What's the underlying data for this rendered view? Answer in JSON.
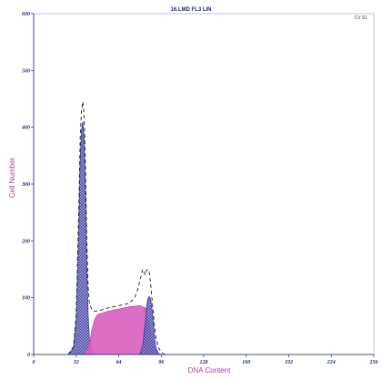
{
  "chart_data": {
    "type": "area",
    "title": "16.LMD FL3 LIN",
    "corner_label": "CV S1",
    "xlabel": "DNA Content",
    "ylabel": "Cell Number",
    "xlim": [
      0,
      256
    ],
    "ylim": [
      0,
      600
    ],
    "x_ticks": [
      0,
      32,
      64,
      96,
      128,
      160,
      192,
      224,
      256
    ],
    "y_ticks": [
      0,
      100,
      200,
      300,
      400,
      500,
      600
    ],
    "grid": false,
    "legend": "none",
    "colors": {
      "g1_peak": "#3a3a9a",
      "s_phase": "#d23ca8",
      "g2_peak": "#3a3a9a",
      "fit_line": "#222222",
      "axis": "#1f2a7a",
      "axis_label": "#b040a0"
    },
    "series": [
      {
        "values_x": [
          26,
          30,
          32,
          34,
          35,
          36,
          37,
          38,
          39,
          40,
          41,
          42,
          44,
          46,
          48
        ],
        "values_y": [
          0,
          12,
          60,
          220,
          340,
          395,
          410,
          380,
          290,
          160,
          70,
          25,
          5,
          0,
          0
        ]
      },
      {
        "values_x": [
          38,
          40,
          42,
          44,
          46,
          48,
          56,
          64,
          72,
          80,
          84,
          86,
          88,
          90,
          92,
          94,
          96
        ],
        "values_y": [
          0,
          8,
          18,
          45,
          62,
          70,
          76,
          80,
          84,
          86,
          82,
          65,
          40,
          18,
          6,
          0,
          0
        ]
      },
      {
        "values_x": [
          80,
          82,
          84,
          85,
          86,
          87,
          88,
          89,
          90,
          91,
          92,
          94,
          96
        ],
        "values_y": [
          0,
          15,
          55,
          85,
          98,
          102,
          98,
          82,
          58,
          30,
          12,
          2,
          0
        ]
      },
      {
        "values_x": [
          26,
          30,
          32,
          34,
          35,
          36,
          37,
          38,
          39,
          40,
          41,
          42,
          44,
          46,
          48,
          52,
          56,
          60,
          64,
          68,
          72,
          76,
          78,
          80,
          82,
          84,
          85,
          86,
          87,
          88,
          89,
          90,
          91,
          92,
          94,
          96,
          98,
          100
        ],
        "values_y": [
          0,
          14,
          70,
          260,
          380,
          430,
          445,
          420,
          330,
          200,
          120,
          90,
          78,
          76,
          77,
          79,
          82,
          84,
          86,
          88,
          90,
          100,
          112,
          130,
          150,
          140,
          148,
          150,
          145,
          125,
          100,
          75,
          50,
          30,
          12,
          4,
          1,
          0
        ]
      }
    ]
  }
}
